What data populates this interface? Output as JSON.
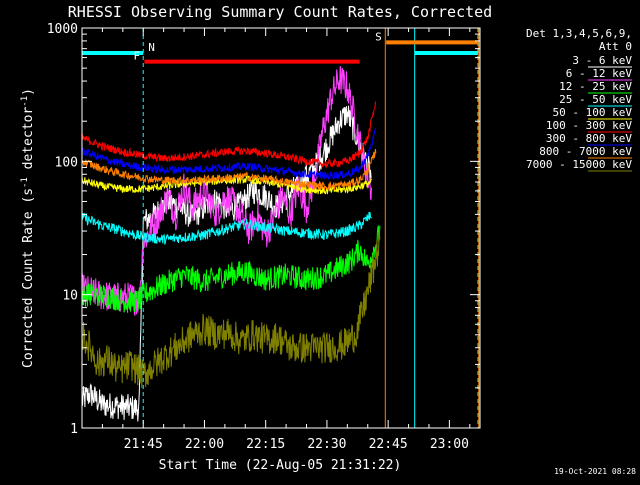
{
  "chart_data": {
    "type": "line",
    "title": "RHESSI Observing Summary Count Rates, Corrected",
    "xlabel": "Start Time (22-Aug-05 21:31:22)",
    "ylabel_main": "Corrected Count Rate (s",
    "ylabel_sup1": "-1",
    "ylabel_mid": " detector",
    "ylabel_sup2": "-1",
    "ylabel_end": ")",
    "x_start_label": "21:31:22",
    "x_range_min": [
      0,
      80
    ],
    "x_ticks": [
      {
        "t": 15,
        "label": "21:45"
      },
      {
        "t": 30,
        "label": "22:00"
      },
      {
        "t": 45,
        "label": "22:15"
      },
      {
        "t": 60,
        "label": "22:30"
      },
      {
        "t": 75,
        "label": "22:45"
      },
      {
        "t": 90,
        "label": "23:00"
      }
    ],
    "x_axis_max_min": 97.5,
    "yscale": "log",
    "ylim": [
      1,
      1000
    ],
    "y_ticks": [
      {
        "v": 1,
        "label": "1"
      },
      {
        "v": 10,
        "label": "10"
      },
      {
        "v": 100,
        "label": "100"
      },
      {
        "v": 1000,
        "label": "1000"
      }
    ],
    "legend_title_1": "Det 1,3,4,5,6,9,",
    "legend_title_2": "Att 0",
    "series": [
      {
        "name": "3 - 6 keV",
        "color": "#ffffff",
        "points": [
          [
            0,
            1.6
          ],
          [
            2,
            1.8
          ],
          [
            5,
            1.5
          ],
          [
            14,
            1.4
          ],
          [
            15,
            35
          ],
          [
            18,
            40
          ],
          [
            21,
            50
          ],
          [
            24,
            45
          ],
          [
            27,
            38
          ],
          [
            30,
            45
          ],
          [
            33,
            52
          ],
          [
            36,
            42
          ],
          [
            39,
            48
          ],
          [
            42,
            60
          ],
          [
            45,
            55
          ],
          [
            48,
            45
          ],
          [
            51,
            58
          ],
          [
            54,
            72
          ],
          [
            57,
            90
          ],
          [
            60,
            130
          ],
          [
            63,
            200
          ],
          [
            65,
            230
          ],
          [
            67,
            160
          ],
          [
            69,
            110
          ],
          [
            71,
            75
          ]
        ]
      },
      {
        "name": "6 - 12 keV",
        "color": "#ff40ff",
        "points": [
          [
            0,
            11
          ],
          [
            4,
            10
          ],
          [
            8,
            9.5
          ],
          [
            12,
            9.5
          ],
          [
            14,
            9
          ],
          [
            15,
            25
          ],
          [
            18,
            35
          ],
          [
            21,
            55
          ],
          [
            23,
            40
          ],
          [
            25,
            65
          ],
          [
            27,
            45
          ],
          [
            30,
            60
          ],
          [
            33,
            40
          ],
          [
            35,
            55
          ],
          [
            38,
            45
          ],
          [
            41,
            30
          ],
          [
            43,
            40
          ],
          [
            45,
            28
          ],
          [
            47,
            38
          ],
          [
            49,
            55
          ],
          [
            51,
            40
          ],
          [
            53,
            65
          ],
          [
            55,
            45
          ],
          [
            57,
            75
          ],
          [
            59,
            170
          ],
          [
            61,
            300
          ],
          [
            63,
            420
          ],
          [
            65,
            360
          ],
          [
            67,
            200
          ],
          [
            69,
            100
          ],
          [
            71,
            60
          ]
        ]
      },
      {
        "name": "12 - 25 keV",
        "color": "#00ff00",
        "points": [
          [
            0,
            10
          ],
          [
            5,
            10
          ],
          [
            10,
            9
          ],
          [
            14,
            9
          ],
          [
            15,
            10
          ],
          [
            20,
            12
          ],
          [
            25,
            14
          ],
          [
            30,
            12.5
          ],
          [
            35,
            14
          ],
          [
            40,
            15
          ],
          [
            45,
            13
          ],
          [
            50,
            14
          ],
          [
            55,
            13
          ],
          [
            60,
            14
          ],
          [
            63,
            16
          ],
          [
            66,
            18
          ],
          [
            68,
            22
          ],
          [
            70,
            17
          ],
          [
            72,
            24
          ],
          [
            73,
            30
          ]
        ]
      },
      {
        "name": "25 - 50 keV",
        "color": "#00ffff",
        "points": [
          [
            0,
            38
          ],
          [
            5,
            33
          ],
          [
            10,
            30
          ],
          [
            15,
            27
          ],
          [
            20,
            26
          ],
          [
            25,
            27
          ],
          [
            30,
            28
          ],
          [
            35,
            31
          ],
          [
            40,
            34
          ],
          [
            45,
            32
          ],
          [
            50,
            30
          ],
          [
            55,
            29
          ],
          [
            60,
            28
          ],
          [
            65,
            30
          ],
          [
            68,
            33
          ],
          [
            71,
            40
          ]
        ]
      },
      {
        "name": "50 - 100 keV",
        "color": "#ffff00",
        "points": [
          [
            0,
            72
          ],
          [
            5,
            65
          ],
          [
            10,
            62
          ],
          [
            15,
            62
          ],
          [
            20,
            65
          ],
          [
            25,
            68
          ],
          [
            30,
            70
          ],
          [
            35,
            72
          ],
          [
            40,
            73
          ],
          [
            45,
            70
          ],
          [
            50,
            66
          ],
          [
            55,
            62
          ],
          [
            60,
            60
          ],
          [
            65,
            62
          ],
          [
            68,
            65
          ],
          [
            71,
            70
          ]
        ]
      },
      {
        "name": "100 - 300 keV",
        "color": "#ff0000",
        "points": [
          [
            0,
            150
          ],
          [
            5,
            130
          ],
          [
            10,
            118
          ],
          [
            15,
            110
          ],
          [
            20,
            105
          ],
          [
            25,
            108
          ],
          [
            30,
            112
          ],
          [
            35,
            118
          ],
          [
            40,
            120
          ],
          [
            45,
            115
          ],
          [
            50,
            108
          ],
          [
            55,
            100
          ],
          [
            60,
            95
          ],
          [
            65,
            100
          ],
          [
            68,
            115
          ],
          [
            70,
            150
          ],
          [
            72,
            280
          ]
        ]
      },
      {
        "name": "300 - 800 keV",
        "color": "#0000ff",
        "points": [
          [
            0,
            120
          ],
          [
            5,
            105
          ],
          [
            10,
            95
          ],
          [
            15,
            90
          ],
          [
            20,
            86
          ],
          [
            25,
            87
          ],
          [
            30,
            88
          ],
          [
            35,
            90
          ],
          [
            40,
            92
          ],
          [
            45,
            88
          ],
          [
            50,
            84
          ],
          [
            55,
            80
          ],
          [
            60,
            78
          ],
          [
            65,
            80
          ],
          [
            68,
            88
          ],
          [
            70,
            110
          ],
          [
            72,
            170
          ]
        ]
      },
      {
        "name": "800 - 7000 keV",
        "color": "#ff8000",
        "points": [
          [
            0,
            100
          ],
          [
            5,
            88
          ],
          [
            10,
            80
          ],
          [
            15,
            75
          ],
          [
            20,
            72
          ],
          [
            25,
            72
          ],
          [
            30,
            73
          ],
          [
            35,
            75
          ],
          [
            40,
            77
          ],
          [
            45,
            74
          ],
          [
            50,
            70
          ],
          [
            55,
            67
          ],
          [
            60,
            65
          ],
          [
            65,
            67
          ],
          [
            68,
            72
          ],
          [
            70,
            85
          ],
          [
            72,
            120
          ]
        ]
      },
      {
        "name": "7000 - 15000 keV",
        "color": "#808000",
        "points": [
          [
            0,
            5
          ],
          [
            2,
            4
          ],
          [
            4,
            3
          ],
          [
            6,
            3.3
          ],
          [
            9,
            2.7
          ],
          [
            12,
            3
          ],
          [
            15,
            2.5
          ],
          [
            18,
            3
          ],
          [
            21,
            3.6
          ],
          [
            24,
            4.2
          ],
          [
            27,
            5
          ],
          [
            30,
            5.5
          ],
          [
            33,
            5
          ],
          [
            36,
            5.2
          ],
          [
            39,
            4.5
          ],
          [
            42,
            5
          ],
          [
            45,
            4.6
          ],
          [
            48,
            4.8
          ],
          [
            51,
            4
          ],
          [
            55,
            4
          ],
          [
            60,
            4
          ],
          [
            64,
            4.2
          ],
          [
            67,
            5
          ],
          [
            69,
            8
          ],
          [
            71,
            14
          ],
          [
            73,
            25
          ]
        ]
      }
    ],
    "data_gaps": [
      {
        "from": 74.5,
        "to": 81.5
      }
    ],
    "flags": [
      {
        "code": "N",
        "color": "#00ffff",
        "y": 650,
        "from": 0,
        "to": 15,
        "label_at": 15
      },
      {
        "code": "N",
        "color": "#00ffff",
        "y": 650,
        "from": 81.5,
        "to": 97,
        "label_at": null
      },
      {
        "code": "F",
        "color": "#ff0000",
        "y": 560,
        "from": 15.3,
        "to": 68,
        "label_at": 15.3
      },
      {
        "code": "S",
        "color": "#ff8000",
        "y": 780,
        "from": 74.5,
        "to": 97,
        "label_at": 74.5
      }
    ],
    "vlines": [
      {
        "t": 15,
        "color": "#00ffff",
        "dashed": true
      },
      {
        "t": 74.3,
        "color": "#ff8000",
        "dashed": false
      },
      {
        "t": 81.5,
        "color": "#00ffff",
        "dashed": false
      },
      {
        "t": 97,
        "color": "#00ffff",
        "dashed": true
      },
      {
        "t": 97.2,
        "color": "#ff8000",
        "dashed": false
      }
    ],
    "legend_placement": "right"
  },
  "timestamp": "19-Oct-2021 08:28"
}
